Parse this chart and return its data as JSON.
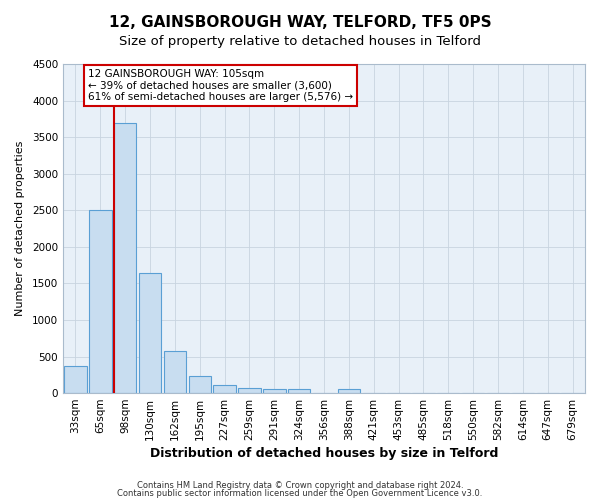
{
  "title": "12, GAINSBOROUGH WAY, TELFORD, TF5 0PS",
  "subtitle": "Size of property relative to detached houses in Telford",
  "xlabel": "Distribution of detached houses by size in Telford",
  "ylabel": "Number of detached properties",
  "footnote1": "Contains HM Land Registry data © Crown copyright and database right 2024.",
  "footnote2": "Contains public sector information licensed under the Open Government Licence v3.0.",
  "categories": [
    "33sqm",
    "65sqm",
    "98sqm",
    "130sqm",
    "162sqm",
    "195sqm",
    "227sqm",
    "259sqm",
    "291sqm",
    "324sqm",
    "356sqm",
    "388sqm",
    "421sqm",
    "453sqm",
    "485sqm",
    "518sqm",
    "550sqm",
    "582sqm",
    "614sqm",
    "647sqm",
    "679sqm"
  ],
  "values": [
    375,
    2500,
    3700,
    1640,
    580,
    240,
    110,
    65,
    50,
    50,
    0,
    60,
    0,
    0,
    0,
    0,
    0,
    0,
    0,
    0,
    0
  ],
  "bar_color": "#c8ddf0",
  "bar_edge_color": "#5a9fd4",
  "bg_color": "#e8f0f8",
  "grid_color": "#c8d4e0",
  "red_line_x": 2,
  "red_line_color": "#cc0000",
  "annotation_text": "12 GAINSBOROUGH WAY: 105sqm\n← 39% of detached houses are smaller (3,600)\n61% of semi-detached houses are larger (5,576) →",
  "ylim": [
    0,
    4500
  ],
  "title_fontsize": 11,
  "subtitle_fontsize": 9.5,
  "xlabel_fontsize": 9,
  "ylabel_fontsize": 8,
  "tick_fontsize": 7.5,
  "footnote_fontsize": 6
}
